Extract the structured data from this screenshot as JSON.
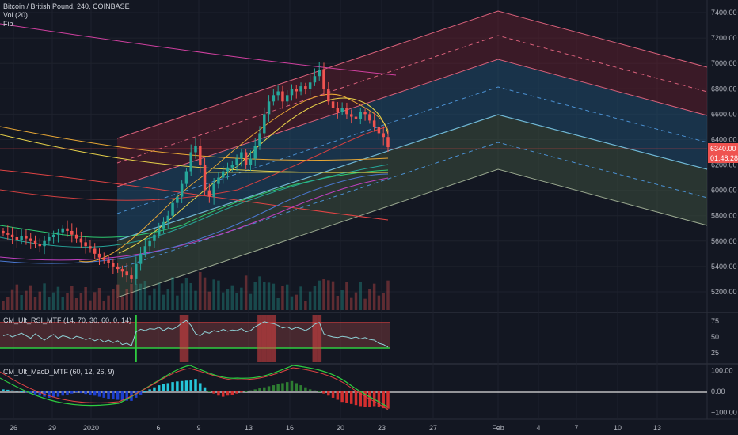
{
  "header": {
    "title": "Bitcoin / British Pound, 240, COINBASE",
    "vol": "Vol (20)",
    "fib": "Fib"
  },
  "indicators": {
    "rsi": "CM_Ult_RSI_MTF (14, 70, 30, 60, 0, 14)",
    "macd": "CM_Ult_MacD_MTF (60, 12, 26, 9)"
  },
  "price_badges": {
    "price": "6340.00",
    "countdown": "01:48:28"
  },
  "colors": {
    "background": "#131722",
    "up": "#26a69a",
    "down": "#ef5350",
    "badge": "#ef5350"
  },
  "chart_data": [
    {
      "type": "candlestick",
      "title": "Bitcoin / British Pound, 240, COINBASE",
      "ylim": [
        5100,
        7450
      ],
      "y_ticks": [
        7400,
        7200,
        7000,
        6800,
        6600,
        6400,
        6200,
        6000,
        5800,
        5600,
        5400,
        5200
      ],
      "y_tick_labels": [
        "7400.00",
        "7200.00",
        "7000.00",
        "6800.00",
        "6600.00",
        "6400.00",
        "6200.00",
        "6000.00",
        "5800.00",
        "5600.00",
        "5400.00",
        "5200.00"
      ],
      "last_price": 6340,
      "x_tick_labels": [
        "26",
        "29",
        "2020",
        "6",
        "9",
        "13",
        "16",
        "20",
        "23",
        "27",
        "Feb",
        "4",
        "7",
        "10",
        "13"
      ],
      "closes": [
        5660,
        5650,
        5630,
        5610,
        5640,
        5620,
        5600,
        5580,
        5560,
        5600,
        5630,
        5650,
        5670,
        5700,
        5680,
        5650,
        5620,
        5590,
        5560,
        5540,
        5500,
        5470,
        5450,
        5430,
        5400,
        5380,
        5360,
        5330,
        5300,
        5420,
        5500,
        5560,
        5600,
        5650,
        5700,
        5750,
        5800,
        5900,
        5950,
        6050,
        6150,
        6300,
        6350,
        6200,
        6000,
        5950,
        6050,
        6100,
        6150,
        6180,
        6200,
        6250,
        6300,
        6200,
        6250,
        6350,
        6450,
        6600,
        6700,
        6750,
        6780,
        6700,
        6750,
        6800,
        6780,
        6820,
        6800,
        6850,
        6900,
        6950,
        6800,
        6700,
        6650,
        6620,
        6650,
        6600,
        6580,
        6560,
        6620,
        6600,
        6550,
        6500,
        6450,
        6420,
        6340
      ]
    },
    {
      "type": "line",
      "title": "CM_Ult_RSI_MTF (14, 70, 30, 60, 0, 14)",
      "ylim": [
        10,
        85
      ],
      "y_ticks": [
        75,
        50,
        25
      ],
      "y_tick_labels": [
        "75",
        "50",
        "25"
      ],
      "levels": [
        70,
        30
      ],
      "values": [
        52,
        54,
        50,
        53,
        56,
        52,
        48,
        55,
        50,
        45,
        50,
        54,
        48,
        52,
        50,
        47,
        51,
        49,
        46,
        48,
        44,
        47,
        42,
        45,
        41,
        44,
        38,
        40,
        36,
        58,
        62,
        60,
        63,
        62,
        65,
        60,
        64,
        62,
        66,
        72,
        76,
        68,
        55,
        52,
        58,
        56,
        60,
        58,
        62,
        59,
        61,
        60,
        63,
        58,
        60,
        66,
        70,
        74,
        72,
        71,
        68,
        64,
        66,
        62,
        65,
        63,
        60,
        64,
        70,
        73,
        55,
        52,
        50,
        49,
        51,
        50,
        48,
        50,
        47,
        49,
        46,
        45,
        40,
        38,
        34
      ]
    },
    {
      "type": "histogram",
      "title": "CM_Ult_MacD_MTF (60, 12, 26, 9)",
      "ylim": [
        -125,
        125
      ],
      "y_ticks": [
        100,
        0,
        -100
      ],
      "y_tick_labels": [
        "100.00",
        "0.00",
        "−100.00"
      ],
      "values": [
        10,
        8,
        5,
        3,
        0,
        -5,
        -10,
        -15,
        -20,
        -25,
        -30,
        -28,
        -25,
        -20,
        -15,
        -10,
        -5,
        -8,
        -12,
        -16,
        -20,
        -25,
        -30,
        -35,
        -38,
        -40,
        -42,
        -44,
        -45,
        -30,
        -15,
        0,
        10,
        20,
        30,
        35,
        40,
        45,
        48,
        50,
        52,
        55,
        60,
        40,
        20,
        0,
        -10,
        -20,
        -25,
        -20,
        -15,
        -10,
        -5,
        0,
        5,
        10,
        15,
        20,
        25,
        30,
        35,
        40,
        45,
        50,
        40,
        30,
        20,
        10,
        5,
        0,
        -10,
        -20,
        -30,
        -40,
        -50,
        -55,
        -60,
        -65,
        -70,
        -72,
        -74,
        -70,
        -75,
        -80,
        -82
      ]
    }
  ]
}
